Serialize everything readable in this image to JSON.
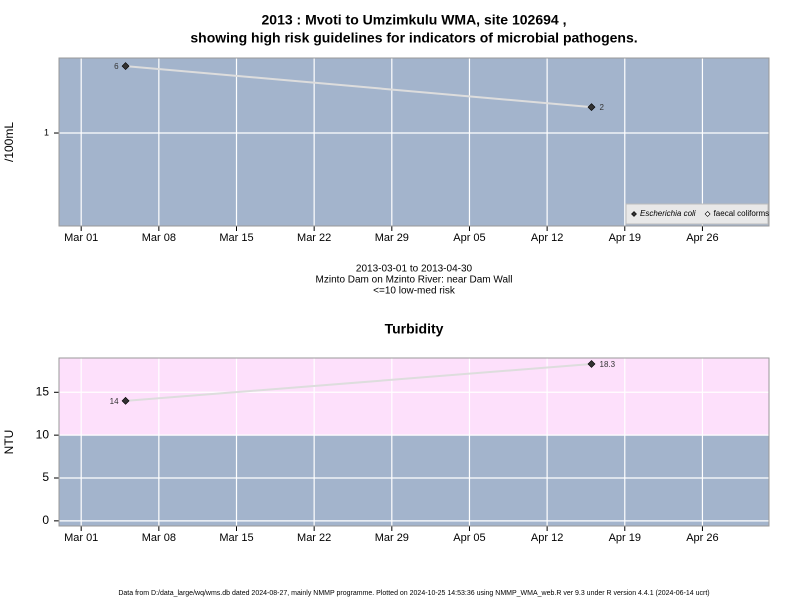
{
  "title": [
    "2013 : Mvoti to Umzimkulu WMA, site 102694 ,",
    "showing high risk guidelines for indicators of microbial pathogens."
  ],
  "chart_data": [
    {
      "type": "line",
      "ylabel": "/100mL",
      "log_scale": true,
      "x": [
        "Mar 05",
        "Apr 16"
      ],
      "series": [
        {
          "name": "Escherichia coli",
          "color": "#333333",
          "values": [
            6,
            2
          ]
        },
        {
          "name": "faecal coliforms",
          "color": "#ffffff",
          "values": [
            null,
            null
          ]
        }
      ],
      "xlim": [
        "Feb 27",
        "May 02"
      ],
      "xticks": [
        "Mar 01",
        "Mar 08",
        "Mar 15",
        "Mar 22",
        "Mar 29",
        "Apr 05",
        "Apr 12",
        "Apr 19",
        "Apr 26"
      ],
      "ylim": [
        0.083,
        7.45
      ],
      "yticks": [
        1
      ],
      "grid": true,
      "legend": "bottom-right",
      "background": "#a3b4cc",
      "line_color": "#dddddd",
      "caption": [
        "2013-03-01 to 2013-04-30",
        "Mzinto Dam on Mzinto River: near Dam Wall",
        "<=10 low-med risk"
      ]
    },
    {
      "type": "line",
      "title": "Turbidity",
      "ylabel": "NTU",
      "log_scale": false,
      "x": [
        "Mar 05",
        "Apr 16"
      ],
      "series": [
        {
          "color": "#333333",
          "values": [
            14,
            18.3
          ]
        }
      ],
      "xlim": [
        "Feb 27",
        "May 02"
      ],
      "xticks": [
        "Mar 01",
        "Mar 08",
        "Mar 15",
        "Mar 22",
        "Mar 29",
        "Apr 05",
        "Apr 12",
        "Apr 19",
        "Apr 26"
      ],
      "ylim": [
        -0.6,
        19
      ],
      "yticks": [
        0,
        5,
        10,
        15
      ],
      "grid": true,
      "background": "#a3b4cc",
      "high_risk_above": 10,
      "high_risk_color": "#fde0fb",
      "line_color": "#dddddd"
    }
  ],
  "footer": "Data from D:/data_large/wq/wms.db dated 2024-08-27, mainly NMMP programme. Plotted on 2024-10-25 14:53:36 using NMMP_WMA_web.R ver 9.3 under R version 4.4.1 (2024-06-14 ucrt)"
}
